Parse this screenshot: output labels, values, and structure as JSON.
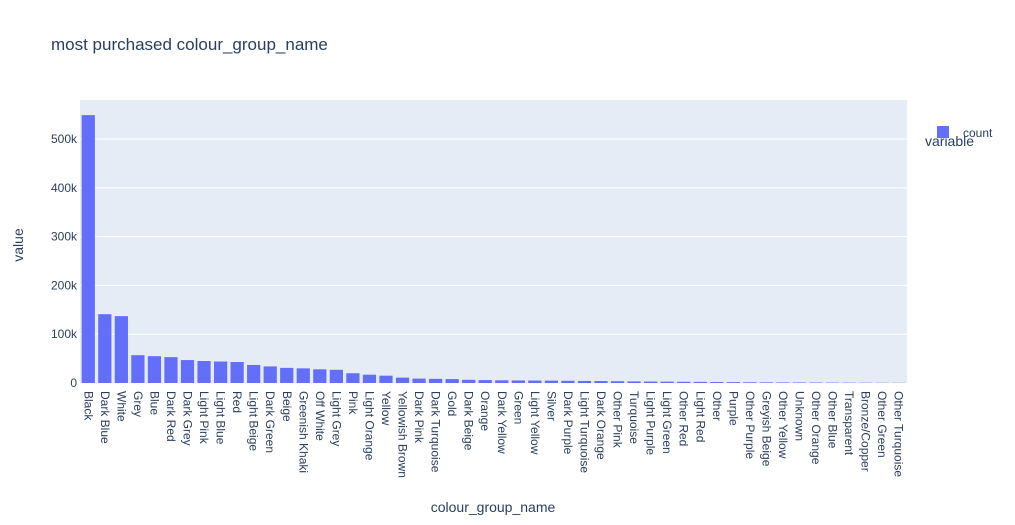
{
  "chart_data": {
    "type": "bar",
    "title": "most purchased colour_group_name",
    "xlabel": "colour_group_name",
    "ylabel": "value",
    "ylim": [
      0,
      580000
    ],
    "yticks": [
      0,
      100000,
      200000,
      300000,
      400000,
      500000
    ],
    "ytick_labels": [
      "0",
      "100k",
      "200k",
      "300k",
      "400k",
      "500k"
    ],
    "legend_title": "variable",
    "legend_position": "top-right",
    "grid": true,
    "colors": {
      "plot_bg": "#e5ecf6",
      "bar": "#636efa",
      "grid": "#ffffff",
      "text": "#2a3f5f"
    },
    "categories": [
      "Black",
      "Dark Blue",
      "White",
      "Grey",
      "Blue",
      "Dark Red",
      "Dark Grey",
      "Light Pink",
      "Light Blue",
      "Red",
      "Light Beige",
      "Dark Green",
      "Beige",
      "Greenish Khaki",
      "Off White",
      "Light Grey",
      "Pink",
      "Light Orange",
      "Yellow",
      "Yellowish Brown",
      "Dark Pink",
      "Dark Turquoise",
      "Gold",
      "Dark Beige",
      "Orange",
      "Dark Yellow",
      "Green",
      "Light Yellow",
      "Silver",
      "Dark Purple",
      "Light Turquoise",
      "Dark Orange",
      "Other Pink",
      "Turquoise",
      "Light Purple",
      "Light Green",
      "Other Red",
      "Light Red",
      "Other",
      "Purple",
      "Other Purple",
      "Greyish Beige",
      "Other Yellow",
      "Unknown",
      "Other Orange",
      "Other Blue",
      "Transparent",
      "Bronze/Copper",
      "Other Green",
      "Other Turquoise"
    ],
    "series": [
      {
        "name": "count",
        "values": [
          549000,
          141000,
          137000,
          57000,
          55000,
          53000,
          47000,
          45000,
          44000,
          43000,
          37000,
          34000,
          31000,
          30000,
          28000,
          27000,
          20000,
          17000,
          15000,
          11000,
          9000,
          8500,
          8000,
          6500,
          6000,
          5500,
          5200,
          5000,
          4800,
          4500,
          4200,
          4000,
          3600,
          3300,
          3000,
          2800,
          2500,
          2300,
          2000,
          1800,
          1500,
          1300,
          1100,
          1000,
          900,
          800,
          700,
          600,
          500,
          400
        ]
      }
    ]
  }
}
